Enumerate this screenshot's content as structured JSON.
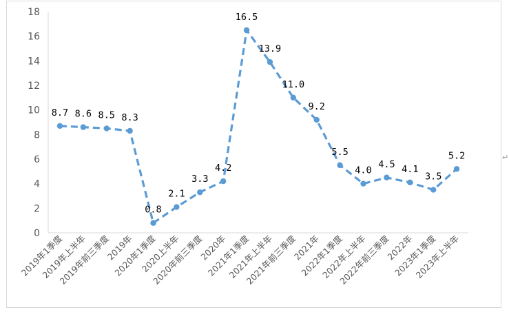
{
  "chart_data": {
    "type": "line",
    "categories": [
      "2019年1季度",
      "2019年上半年",
      "2019年前三季度",
      "2019年",
      "2020年1季度",
      "2020上半年",
      "2020年前三季度",
      "2020年",
      "2021年1季度",
      "2021年上半年",
      "2021年前三季度",
      "2021年",
      "2022年1季度",
      "2022年上半年",
      "2022年前三季度",
      "2022年",
      "2023年1季度",
      "2023年上半年"
    ],
    "series": [
      {
        "values": [
          8.7,
          8.6,
          8.5,
          8.3,
          0.8,
          2.1,
          3.3,
          4.2,
          16.5,
          13.9,
          11.0,
          9.2,
          5.5,
          4.0,
          4.5,
          4.1,
          3.5,
          5.2
        ],
        "data_labels": [
          "8.7",
          "8.6",
          "8.5",
          "8.3",
          "0.8",
          "2.1",
          "3.3",
          "4.2",
          "16.5",
          "13.9",
          "11.0",
          "9.2",
          "5.5",
          "4.0",
          "4.5",
          "4.1",
          "3.5",
          "5.2"
        ],
        "color": "#5b9bd5",
        "line_style": "dashed",
        "marker": "circle"
      }
    ],
    "ylim": [
      0,
      18
    ],
    "yticks": [
      "0",
      "2",
      "4",
      "6",
      "8",
      "10",
      "12",
      "14",
      "16",
      "18"
    ],
    "grid": false,
    "legend": "none",
    "title": "",
    "xlabel": "",
    "ylabel": ""
  },
  "edge_mark": "↵"
}
